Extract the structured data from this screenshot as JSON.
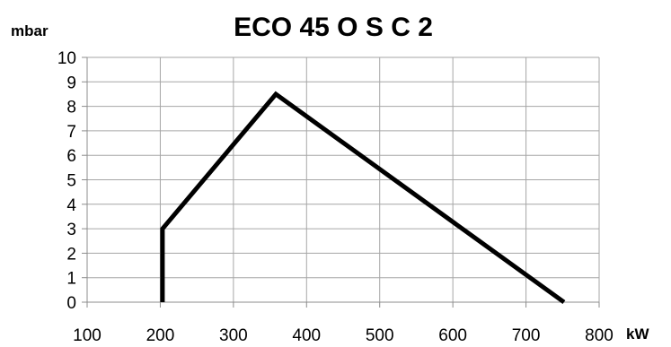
{
  "chart_data": {
    "type": "line",
    "title": "ECO 45 O S C 2",
    "xlabel": "kW",
    "ylabel": "mbar",
    "xlim": [
      100,
      800
    ],
    "ylim": [
      0,
      10
    ],
    "x_ticks": [
      100,
      200,
      300,
      400,
      500,
      600,
      700,
      800
    ],
    "y_ticks": [
      0,
      1,
      2,
      3,
      4,
      5,
      6,
      7,
      8,
      9,
      10
    ],
    "grid": true,
    "series": [
      {
        "color": "#000000",
        "points": [
          {
            "x": 203,
            "y": 0
          },
          {
            "x": 203,
            "y": 3
          },
          {
            "x": 358,
            "y": 8.5
          },
          {
            "x": 752,
            "y": 0
          }
        ]
      }
    ]
  }
}
